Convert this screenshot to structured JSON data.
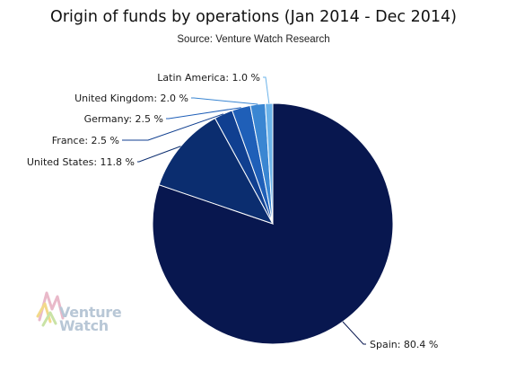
{
  "chart_data": {
    "type": "pie",
    "title": "Origin of funds by operations (Jan 2014 - Dec 2014)",
    "subtitle": "Source: Venture Watch Research",
    "slices": [
      {
        "label": "Spain",
        "value": 80.4,
        "display": "Spain: 80.4 %",
        "color": "#08174f"
      },
      {
        "label": "United States",
        "value": 11.8,
        "display": "United States: 11.8 %",
        "color": "#0b2d6f"
      },
      {
        "label": "France",
        "value": 2.5,
        "display": "France: 2.5 %",
        "color": "#103f90"
      },
      {
        "label": "Germany",
        "value": 2.5,
        "display": "Germany: 2.5 %",
        "color": "#1f5fb8"
      },
      {
        "label": "United Kingdom",
        "value": 2.0,
        "display": "United Kingdom: 2.0 %",
        "color": "#3a86d2"
      },
      {
        "label": "Latin America",
        "value": 1.0,
        "display": "Latin America: 1.0 %",
        "color": "#6bb3ea"
      }
    ],
    "start_angle_deg": 0,
    "direction": "clockwise"
  },
  "logo": {
    "line1": "Venture",
    "line2": "Watch"
  }
}
